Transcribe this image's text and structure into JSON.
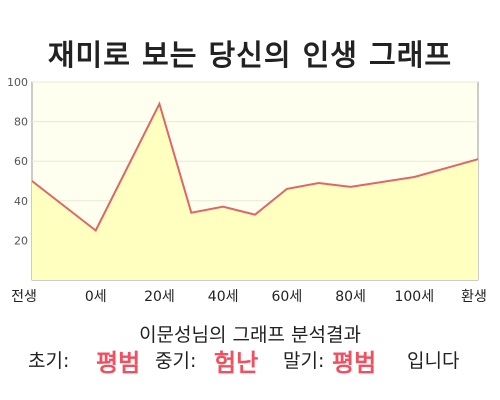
{
  "title": "재미로 보는 당신의 인생 그래프",
  "subtitle": "이문성님의 그래프 분석결과",
  "result": {
    "early_label": "초기:",
    "early_value": "평범",
    "middle_label": "중기:",
    "middle_value": "험난",
    "late_label": "말기:",
    "late_value": "평범",
    "ending": "입니다"
  },
  "colors": {
    "line": "#e06666",
    "fill": "#ffffc0",
    "plot_bg": "#fffff0",
    "highlight": "#f05060"
  },
  "chart_data": {
    "type": "area",
    "title": "재미로 보는 당신의 인생 그래프",
    "xlabel": "",
    "ylabel": "",
    "ylim": [
      0,
      100
    ],
    "yticks": [
      20,
      40,
      60,
      80,
      100
    ],
    "grid": true,
    "x_tick_labels": [
      "전생",
      "0세",
      "20세",
      "40세",
      "60세",
      "80세",
      "100세",
      "환생"
    ],
    "x": [
      -20,
      0,
      20,
      30,
      40,
      50,
      60,
      70,
      80,
      100,
      120
    ],
    "series": [
      {
        "values": [
          50,
          25,
          89,
          34,
          37,
          33,
          46,
          49,
          47,
          52,
          61
        ]
      }
    ]
  }
}
